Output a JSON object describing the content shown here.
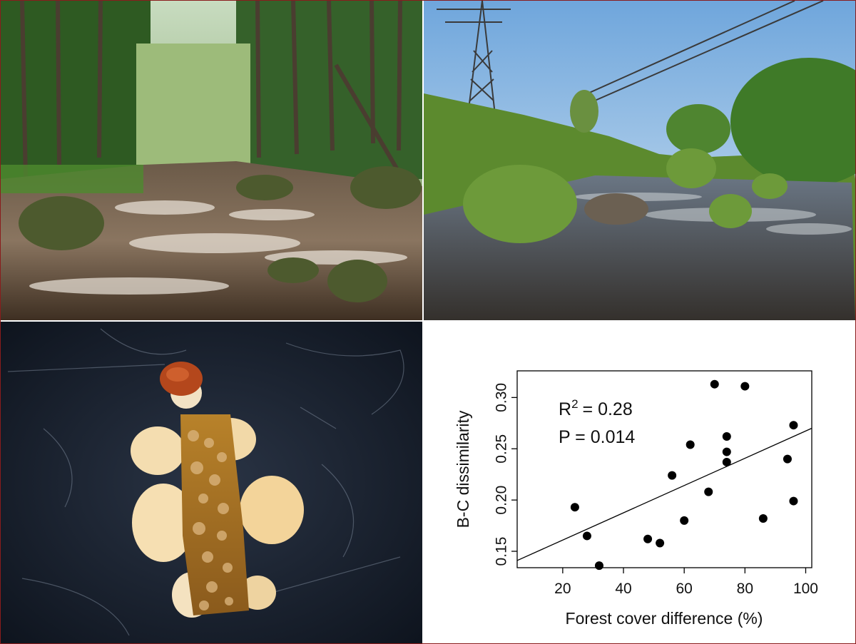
{
  "photos": {
    "forest_stream": {
      "icon": "forest-stream-photo"
    },
    "open_stream": {
      "icon": "powerline-stream-photo"
    },
    "caddis_larva": {
      "icon": "caddisfly-larva-case-photo"
    }
  },
  "chart_data": {
    "type": "scatter",
    "title": "",
    "xlabel": "Forest cover difference (%)",
    "ylabel": "B-C dissimilarity",
    "xlim": [
      5,
      102
    ],
    "ylim": [
      0.134,
      0.326
    ],
    "xticks": [
      20,
      40,
      60,
      80,
      100
    ],
    "yticks": [
      0.15,
      0.2,
      0.25,
      0.3
    ],
    "xtick_labels": [
      "20",
      "40",
      "60",
      "80",
      "100"
    ],
    "ytick_labels": [
      "0.15",
      "0.20",
      "0.25",
      "0.30"
    ],
    "grid": false,
    "annotations": {
      "r2_prefix": "R",
      "r2_sup": "2",
      "r2_value": "= 0.28",
      "p_text": "P = 0.014"
    },
    "points": [
      {
        "x": 24,
        "y": 0.193
      },
      {
        "x": 28,
        "y": 0.165
      },
      {
        "x": 32,
        "y": 0.136
      },
      {
        "x": 48,
        "y": 0.162
      },
      {
        "x": 52,
        "y": 0.158
      },
      {
        "x": 56,
        "y": 0.224
      },
      {
        "x": 60,
        "y": 0.18
      },
      {
        "x": 62,
        "y": 0.254
      },
      {
        "x": 68,
        "y": 0.208
      },
      {
        "x": 70,
        "y": 0.313
      },
      {
        "x": 74,
        "y": 0.262
      },
      {
        "x": 74,
        "y": 0.247
      },
      {
        "x": 74,
        "y": 0.237
      },
      {
        "x": 80,
        "y": 0.311
      },
      {
        "x": 86,
        "y": 0.182
      },
      {
        "x": 94,
        "y": 0.24
      },
      {
        "x": 96,
        "y": 0.273
      },
      {
        "x": 96,
        "y": 0.199
      }
    ],
    "fit_line": {
      "x": [
        5,
        102
      ],
      "y": [
        0.141,
        0.27
      ]
    },
    "colors": {
      "points": "#000000",
      "line": "#000000",
      "axes": "#000000"
    }
  }
}
